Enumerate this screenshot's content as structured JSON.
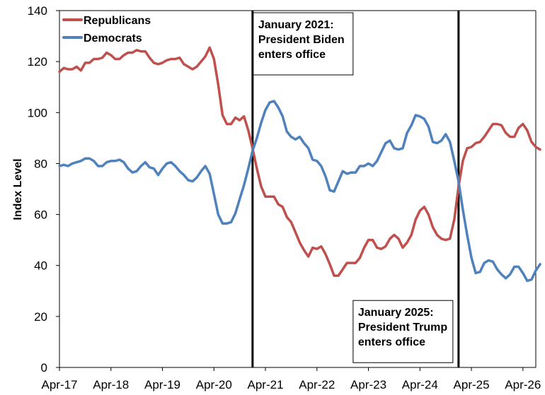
{
  "chart_data": {
    "type": "line",
    "title": "",
    "xlabel": "",
    "ylabel": "Index Level",
    "ylim": [
      0,
      140
    ],
    "yticks": [
      0,
      20,
      40,
      60,
      80,
      100,
      120,
      140
    ],
    "x_start": "2017-04",
    "x_end": "2026-07",
    "xticks": [
      "Apr-17",
      "Apr-18",
      "Apr-19",
      "Apr-20",
      "Apr-21",
      "Apr-22",
      "Apr-23",
      "Apr-24",
      "Apr-25",
      "Apr-26"
    ],
    "grid": false,
    "legend_position": "top-left",
    "series": [
      {
        "name": "Republicans",
        "color": "#C0504D",
        "points": [
          [
            "2017-04",
            116
          ],
          [
            "2017-05",
            117.5
          ],
          [
            "2017-06",
            117
          ],
          [
            "2017-07",
            117
          ],
          [
            "2017-08",
            118
          ],
          [
            "2017-09",
            116.5
          ],
          [
            "2017-10",
            119.5
          ],
          [
            "2017-11",
            119.5
          ],
          [
            "2017-12",
            121
          ],
          [
            "2018-01",
            121
          ],
          [
            "2018-02",
            121.5
          ],
          [
            "2018-03",
            123.5
          ],
          [
            "2018-04",
            122.5
          ],
          [
            "2018-05",
            121
          ],
          [
            "2018-06",
            121
          ],
          [
            "2018-07",
            122.5
          ],
          [
            "2018-08",
            123.5
          ],
          [
            "2018-09",
            123.5
          ],
          [
            "2018-10",
            124.5
          ],
          [
            "2018-11",
            124
          ],
          [
            "2018-12",
            124
          ],
          [
            "2019-01",
            121.5
          ],
          [
            "2019-02",
            119.5
          ],
          [
            "2019-03",
            119
          ],
          [
            "2019-04",
            119.5
          ],
          [
            "2019-05",
            120.5
          ],
          [
            "2019-06",
            121
          ],
          [
            "2019-07",
            121
          ],
          [
            "2019-08",
            121.5
          ],
          [
            "2019-09",
            119
          ],
          [
            "2019-10",
            118
          ],
          [
            "2019-11",
            117
          ],
          [
            "2019-12",
            118
          ],
          [
            "2020-01",
            120
          ],
          [
            "2020-02",
            122
          ],
          [
            "2020-03",
            125.5
          ],
          [
            "2020-04",
            121
          ],
          [
            "2020-05",
            111
          ],
          [
            "2020-06",
            99
          ],
          [
            "2020-07",
            95.5
          ],
          [
            "2020-08",
            95.5
          ],
          [
            "2020-09",
            98
          ],
          [
            "2020-10",
            97
          ],
          [
            "2020-11",
            98.5
          ],
          [
            "2020-12",
            93
          ],
          [
            "2021-01",
            86
          ],
          [
            "2021-02",
            78
          ],
          [
            "2021-03",
            71
          ],
          [
            "2021-04",
            67
          ],
          [
            "2021-05",
            67
          ],
          [
            "2021-06",
            67
          ],
          [
            "2021-07",
            64
          ],
          [
            "2021-08",
            63
          ],
          [
            "2021-09",
            59
          ],
          [
            "2021-10",
            57
          ],
          [
            "2021-11",
            53
          ],
          [
            "2021-12",
            49
          ],
          [
            "2022-01",
            46
          ],
          [
            "2022-02",
            43.5
          ],
          [
            "2022-03",
            47
          ],
          [
            "2022-04",
            46.5
          ],
          [
            "2022-05",
            47.5
          ],
          [
            "2022-06",
            44.5
          ],
          [
            "2022-07",
            40.5
          ],
          [
            "2022-08",
            36
          ],
          [
            "2022-09",
            36
          ],
          [
            "2022-10",
            38.5
          ],
          [
            "2022-11",
            41
          ],
          [
            "2022-12",
            41
          ],
          [
            "2023-01",
            41
          ],
          [
            "2023-02",
            43
          ],
          [
            "2023-03",
            47
          ],
          [
            "2023-04",
            50
          ],
          [
            "2023-05",
            50
          ],
          [
            "2023-06",
            47
          ],
          [
            "2023-07",
            46.5
          ],
          [
            "2023-08",
            47.5
          ],
          [
            "2023-09",
            50.5
          ],
          [
            "2023-10",
            52
          ],
          [
            "2023-11",
            50.5
          ],
          [
            "2023-12",
            47
          ],
          [
            "2024-01",
            49
          ],
          [
            "2024-02",
            52
          ],
          [
            "2024-03",
            58
          ],
          [
            "2024-04",
            61.5
          ],
          [
            "2024-05",
            63
          ],
          [
            "2024-06",
            60
          ],
          [
            "2024-07",
            55
          ],
          [
            "2024-08",
            52
          ],
          [
            "2024-09",
            50.5
          ],
          [
            "2024-10",
            50
          ],
          [
            "2024-11",
            50.5
          ],
          [
            "2024-12",
            58
          ],
          [
            "2025-01",
            71
          ],
          [
            "2025-02",
            81
          ],
          [
            "2025-03",
            86
          ],
          [
            "2025-04",
            86.5
          ],
          [
            "2025-05",
            88
          ],
          [
            "2025-06",
            88.5
          ],
          [
            "2025-07",
            90.5
          ],
          [
            "2025-08",
            93
          ],
          [
            "2025-09",
            95.5
          ],
          [
            "2025-10",
            95.5
          ],
          [
            "2025-11",
            95
          ],
          [
            "2025-12",
            92
          ],
          [
            "2026-01",
            90.5
          ],
          [
            "2026-02",
            90.5
          ],
          [
            "2026-03",
            94
          ],
          [
            "2026-04",
            95.5
          ],
          [
            "2026-05",
            93
          ],
          [
            "2026-06",
            88.5
          ],
          [
            "2026-07",
            86.5
          ],
          [
            "2026-08",
            85.5
          ]
        ]
      },
      {
        "name": "Democrats",
        "color": "#4F81BD",
        "points": [
          [
            "2017-04",
            79
          ],
          [
            "2017-05",
            79.5
          ],
          [
            "2017-06",
            79
          ],
          [
            "2017-07",
            80
          ],
          [
            "2017-08",
            80.5
          ],
          [
            "2017-09",
            81
          ],
          [
            "2017-10",
            82
          ],
          [
            "2017-11",
            82
          ],
          [
            "2017-12",
            81
          ],
          [
            "2018-01",
            79
          ],
          [
            "2018-02",
            79
          ],
          [
            "2018-03",
            80.5
          ],
          [
            "2018-04",
            81
          ],
          [
            "2018-05",
            81
          ],
          [
            "2018-06",
            81.5
          ],
          [
            "2018-07",
            80.5
          ],
          [
            "2018-08",
            78
          ],
          [
            "2018-09",
            76.5
          ],
          [
            "2018-10",
            77
          ],
          [
            "2018-11",
            79
          ],
          [
            "2018-12",
            80.5
          ],
          [
            "2019-01",
            78.5
          ],
          [
            "2019-02",
            78
          ],
          [
            "2019-03",
            75.5
          ],
          [
            "2019-04",
            78
          ],
          [
            "2019-05",
            80
          ],
          [
            "2019-06",
            80.5
          ],
          [
            "2019-07",
            79
          ],
          [
            "2019-08",
            77
          ],
          [
            "2019-09",
            75.5
          ],
          [
            "2019-10",
            73.5
          ],
          [
            "2019-11",
            73
          ],
          [
            "2019-12",
            74.5
          ],
          [
            "2020-01",
            77
          ],
          [
            "2020-02",
            79
          ],
          [
            "2020-03",
            76
          ],
          [
            "2020-04",
            68
          ],
          [
            "2020-05",
            60
          ],
          [
            "2020-06",
            56.5
          ],
          [
            "2020-07",
            56.5
          ],
          [
            "2020-08",
            57
          ],
          [
            "2020-09",
            60.5
          ],
          [
            "2020-10",
            66
          ],
          [
            "2020-11",
            71.5
          ],
          [
            "2020-12",
            78
          ],
          [
            "2021-01",
            85
          ],
          [
            "2021-02",
            90
          ],
          [
            "2021-03",
            96
          ],
          [
            "2021-04",
            101
          ],
          [
            "2021-05",
            104
          ],
          [
            "2021-06",
            104.5
          ],
          [
            "2021-07",
            102
          ],
          [
            "2021-08",
            98.5
          ],
          [
            "2021-09",
            92.5
          ],
          [
            "2021-10",
            90.5
          ],
          [
            "2021-11",
            89.5
          ],
          [
            "2021-12",
            90.5
          ],
          [
            "2022-01",
            88
          ],
          [
            "2022-02",
            86
          ],
          [
            "2022-03",
            81.5
          ],
          [
            "2022-04",
            81
          ],
          [
            "2022-05",
            79
          ],
          [
            "2022-06",
            75
          ],
          [
            "2022-07",
            69.5
          ],
          [
            "2022-08",
            69
          ],
          [
            "2022-09",
            73
          ],
          [
            "2022-10",
            77
          ],
          [
            "2022-11",
            76
          ],
          [
            "2022-12",
            76.5
          ],
          [
            "2023-01",
            76.5
          ],
          [
            "2023-02",
            79
          ],
          [
            "2023-03",
            79
          ],
          [
            "2023-04",
            80
          ],
          [
            "2023-05",
            79
          ],
          [
            "2023-06",
            81
          ],
          [
            "2023-07",
            84.5
          ],
          [
            "2023-08",
            88
          ],
          [
            "2023-09",
            89
          ],
          [
            "2023-10",
            86
          ],
          [
            "2023-11",
            85.5
          ],
          [
            "2023-12",
            86
          ],
          [
            "2024-01",
            92
          ],
          [
            "2024-02",
            95
          ],
          [
            "2024-03",
            99
          ],
          [
            "2024-04",
            98.5
          ],
          [
            "2024-05",
            97.5
          ],
          [
            "2024-06",
            94.5
          ],
          [
            "2024-07",
            88.5
          ],
          [
            "2024-08",
            88
          ],
          [
            "2024-09",
            89
          ],
          [
            "2024-10",
            91.5
          ],
          [
            "2024-11",
            88.5
          ],
          [
            "2024-12",
            81
          ],
          [
            "2025-01",
            73
          ],
          [
            "2025-02",
            62
          ],
          [
            "2025-03",
            52
          ],
          [
            "2025-04",
            43
          ],
          [
            "2025-05",
            37
          ],
          [
            "2025-06",
            37.5
          ],
          [
            "2025-07",
            41
          ],
          [
            "2025-08",
            42
          ],
          [
            "2025-09",
            41.5
          ],
          [
            "2025-10",
            38.5
          ],
          [
            "2025-11",
            36.5
          ],
          [
            "2025-12",
            35
          ],
          [
            "2026-01",
            36.5
          ],
          [
            "2026-02",
            39.5
          ],
          [
            "2026-03",
            39.5
          ],
          [
            "2026-04",
            37
          ],
          [
            "2026-05",
            34
          ],
          [
            "2026-06",
            34.5
          ],
          [
            "2026-07",
            38
          ],
          [
            "2026-08",
            40.5
          ]
        ]
      }
    ],
    "vertical_lines": [
      {
        "date": "2021-01",
        "color": "#000000"
      },
      {
        "date": "2025-01",
        "color": "#000000"
      }
    ],
    "annotations": [
      {
        "lines": [
          "January 2021:",
          "President Biden",
          "enters office"
        ],
        "date": "2021-01",
        "y": 140,
        "placement": "right-of-line-top"
      },
      {
        "lines": [
          "January 2025:",
          "President Trump",
          "enters office"
        ],
        "date": "2025-01",
        "y": 26,
        "placement": "left-of-line-bottom"
      }
    ]
  }
}
